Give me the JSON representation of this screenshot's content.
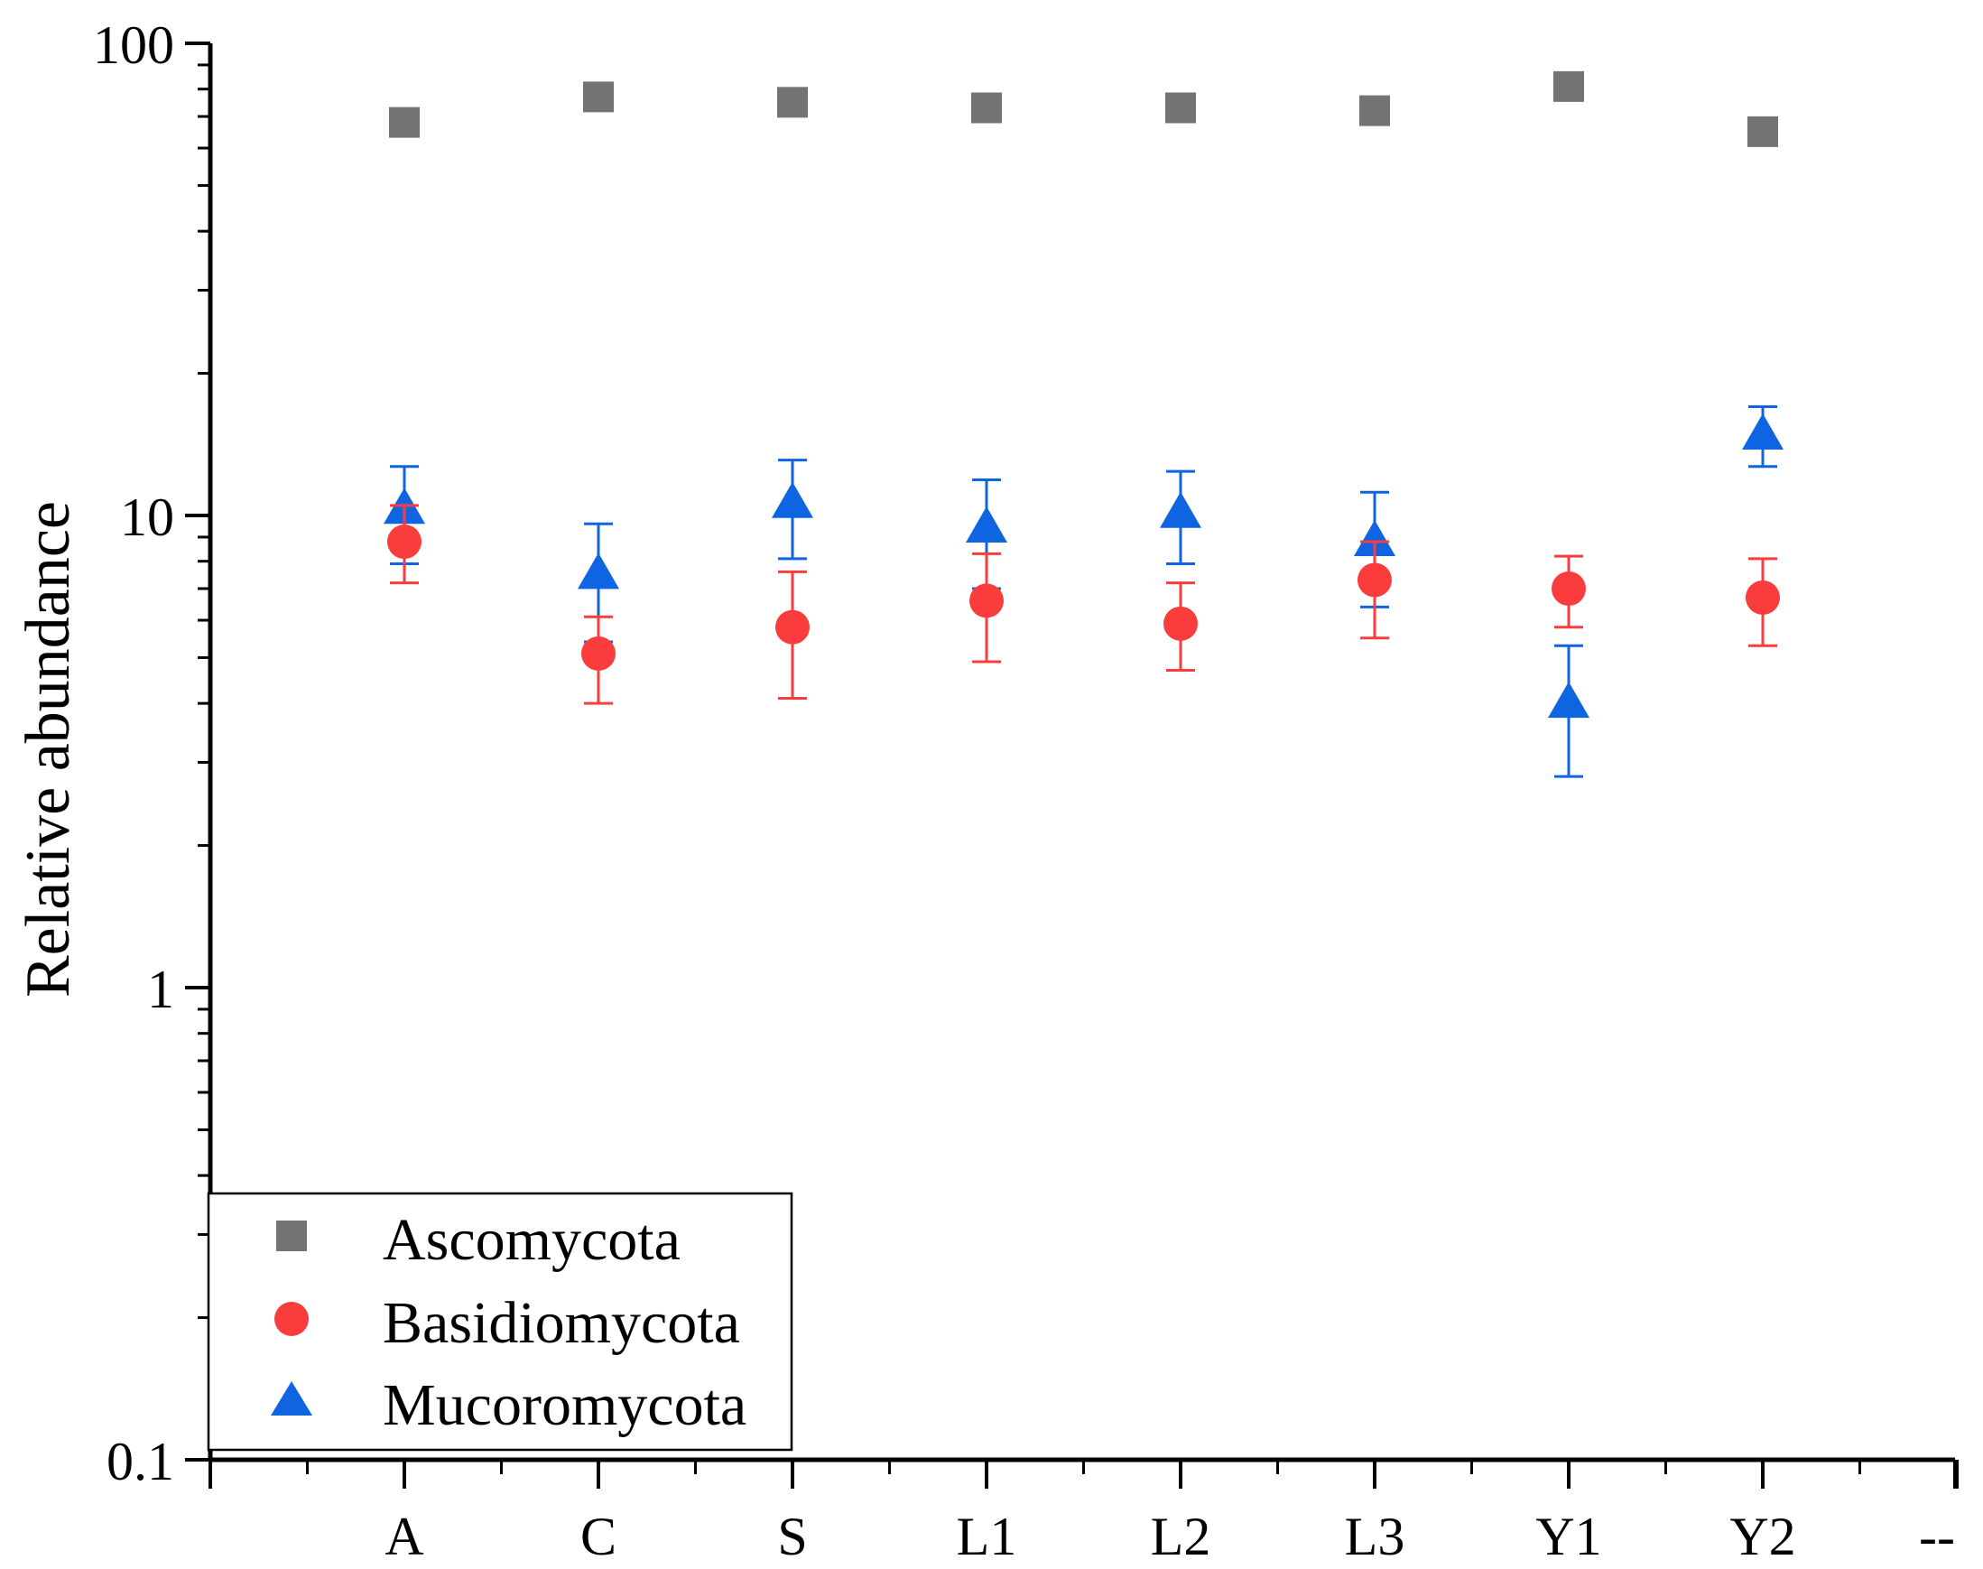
{
  "chart_data": {
    "type": "scatter",
    "title": "",
    "xlabel": "",
    "ylabel": "Relative abundance",
    "yscale": "log",
    "ylim": [
      0.1,
      100
    ],
    "yticks": [
      0.1,
      1,
      10,
      100
    ],
    "ytick_labels": [
      "0.1",
      "1",
      "10",
      "100"
    ],
    "categories": [
      "A",
      "C",
      "S",
      "L1",
      "L2",
      "L3",
      "Y1",
      "Y2"
    ],
    "extra_tick_label": "--",
    "legend_position": "bottom-left",
    "series": [
      {
        "name": "Ascomycota",
        "marker": "square",
        "color": "#737373",
        "values": [
          68,
          77,
          75,
          73,
          73,
          72,
          81,
          65
        ],
        "err_low": [
          0,
          0,
          0,
          0,
          0,
          0,
          0,
          0
        ],
        "err_high": [
          0,
          0,
          0,
          0,
          0,
          0,
          0,
          0
        ]
      },
      {
        "name": "Basidiomycota",
        "marker": "circle",
        "color": "#fa3c3c",
        "values": [
          8.8,
          5.1,
          5.8,
          6.6,
          5.9,
          7.3,
          7.0,
          6.7
        ],
        "err_low": [
          7.2,
          4.0,
          4.1,
          4.9,
          4.7,
          5.5,
          5.8,
          5.3
        ],
        "err_high": [
          10.5,
          6.1,
          7.6,
          8.3,
          7.2,
          8.8,
          8.2,
          8.1
        ]
      },
      {
        "name": "Mucoromycota",
        "marker": "triangle",
        "color": "#0f64e1",
        "values": [
          10.3,
          7.5,
          10.6,
          9.4,
          10.1,
          8.8,
          4.0,
          14.8
        ],
        "err_low": [
          7.9,
          5.4,
          8.1,
          7.0,
          7.9,
          6.4,
          2.8,
          12.7
        ],
        "err_high": [
          12.7,
          9.6,
          13.1,
          11.9,
          12.4,
          11.2,
          5.3,
          17.0
        ]
      }
    ]
  }
}
